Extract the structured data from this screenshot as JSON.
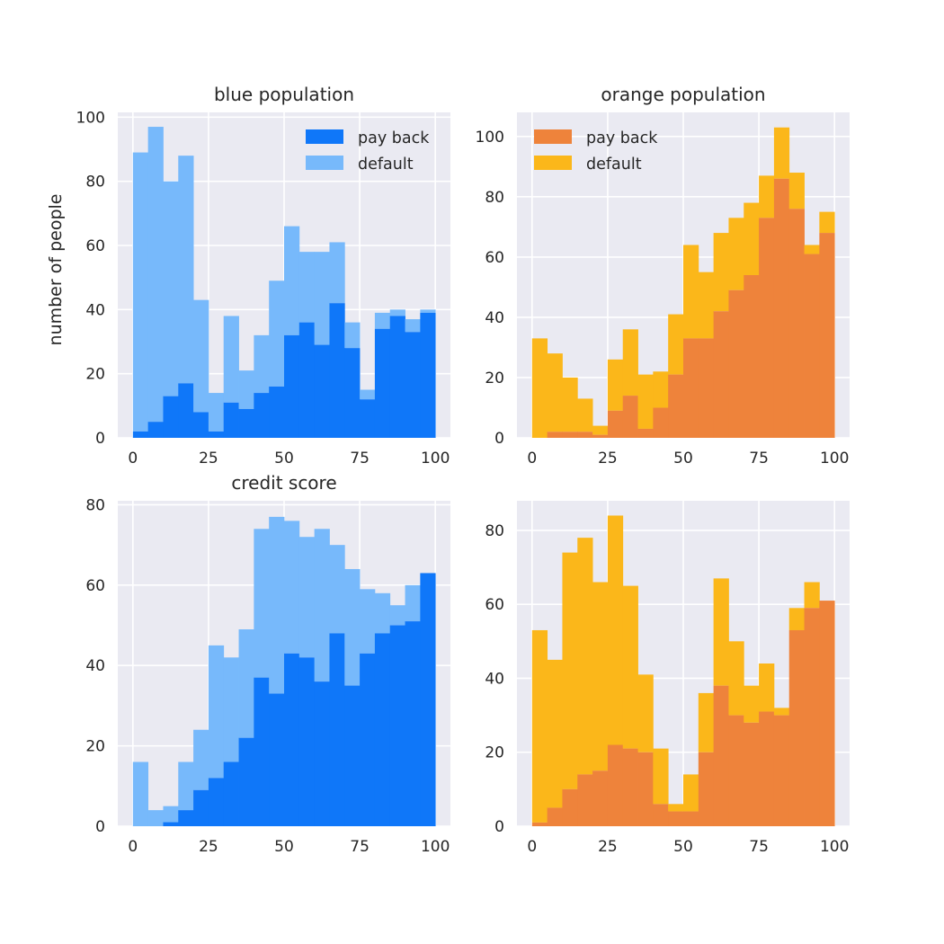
{
  "colors": {
    "blue_pay_back": "#0f77f9",
    "blue_default": "#77b9fb",
    "orange_pay_back": "#ee833b",
    "orange_default": "#fbb71a",
    "axes_bg": "#eaeaf2",
    "grid": "#ffffff"
  },
  "chart_data": [
    {
      "type": "bar",
      "stacked": true,
      "title": "blue population",
      "xlabel": "",
      "ylabel": "number of people",
      "xlim": [
        -5,
        105
      ],
      "ylim": [
        0,
        101.5
      ],
      "xticks": [
        0,
        25,
        50,
        75,
        100
      ],
      "yticks": [
        0,
        20,
        40,
        60,
        80,
        100
      ],
      "bin_edges": [
        0,
        5,
        10,
        15,
        20,
        25,
        30,
        35,
        40,
        45,
        50,
        55,
        60,
        65,
        70,
        75,
        80,
        85,
        90,
        95,
        100
      ],
      "grid": true,
      "legend": "top-right",
      "series": [
        {
          "name": "pay back",
          "values": [
            2,
            5,
            13,
            17,
            8,
            2,
            11,
            9,
            14,
            16,
            32,
            36,
            29,
            42,
            28,
            12,
            34,
            38,
            33,
            39
          ]
        },
        {
          "name": "default",
          "values": [
            87,
            92,
            67,
            71,
            35,
            12,
            27,
            12,
            18,
            33,
            34,
            22,
            29,
            19,
            8,
            3,
            5,
            2,
            4,
            1
          ]
        }
      ]
    },
    {
      "type": "bar",
      "stacked": true,
      "title": "orange population",
      "xlabel": "",
      "ylabel": "",
      "xlim": [
        -5,
        105
      ],
      "ylim": [
        0,
        108
      ],
      "xticks": [
        0,
        25,
        50,
        75,
        100
      ],
      "yticks": [
        0,
        20,
        40,
        60,
        80,
        100
      ],
      "bin_edges": [
        0,
        5,
        10,
        15,
        20,
        25,
        30,
        35,
        40,
        45,
        50,
        55,
        60,
        65,
        70,
        75,
        80,
        85,
        90,
        95,
        100
      ],
      "grid": true,
      "legend": "top-left",
      "series": [
        {
          "name": "pay back",
          "values": [
            0,
            2,
            2,
            2,
            1,
            9,
            14,
            3,
            10,
            21,
            33,
            33,
            42,
            49,
            54,
            73,
            86,
            76,
            61,
            68
          ]
        },
        {
          "name": "default",
          "values": [
            33,
            26,
            18,
            11,
            3,
            17,
            22,
            18,
            12,
            20,
            31,
            22,
            26,
            24,
            24,
            14,
            17,
            12,
            3,
            7
          ]
        }
      ]
    },
    {
      "type": "bar",
      "stacked": true,
      "title": "credit score",
      "xlabel": "",
      "ylabel": "",
      "xlim": [
        -5,
        105
      ],
      "ylim": [
        0,
        81
      ],
      "xticks": [
        0,
        25,
        50,
        75,
        100
      ],
      "yticks": [
        0,
        20,
        40,
        60,
        80
      ],
      "bin_edges": [
        0,
        5,
        10,
        15,
        20,
        25,
        30,
        35,
        40,
        45,
        50,
        55,
        60,
        65,
        70,
        75,
        80,
        85,
        90,
        95,
        100
      ],
      "grid": true,
      "legend": "",
      "series": [
        {
          "name": "",
          "values": [
            0,
            0,
            1,
            4,
            9,
            12,
            16,
            22,
            37,
            33,
            43,
            42,
            36,
            48,
            35,
            43,
            48,
            50,
            51,
            63
          ]
        },
        {
          "name": "",
          "values": [
            16,
            4,
            4,
            12,
            15,
            33,
            26,
            27,
            37,
            44,
            33,
            30,
            38,
            22,
            29,
            16,
            10,
            5,
            9,
            0
          ]
        }
      ]
    },
    {
      "type": "bar",
      "stacked": true,
      "title": "",
      "xlabel": "",
      "ylabel": "",
      "xlim": [
        -5,
        105
      ],
      "ylim": [
        0,
        88
      ],
      "xticks": [
        0,
        25,
        50,
        75,
        100
      ],
      "yticks": [
        0,
        20,
        40,
        60,
        80
      ],
      "bin_edges": [
        0,
        5,
        10,
        15,
        20,
        25,
        30,
        35,
        40,
        45,
        50,
        55,
        60,
        65,
        70,
        75,
        80,
        85,
        90,
        95,
        100
      ],
      "grid": true,
      "legend": "",
      "series": [
        {
          "name": "",
          "values": [
            1,
            5,
            10,
            14,
            15,
            22,
            21,
            20,
            6,
            4,
            4,
            20,
            38,
            30,
            28,
            31,
            30,
            53,
            59,
            61
          ]
        },
        {
          "name": "",
          "values": [
            52,
            40,
            64,
            64,
            51,
            62,
            44,
            21,
            15,
            2,
            10,
            16,
            29,
            20,
            10,
            13,
            2,
            6,
            7,
            0
          ]
        }
      ]
    }
  ]
}
